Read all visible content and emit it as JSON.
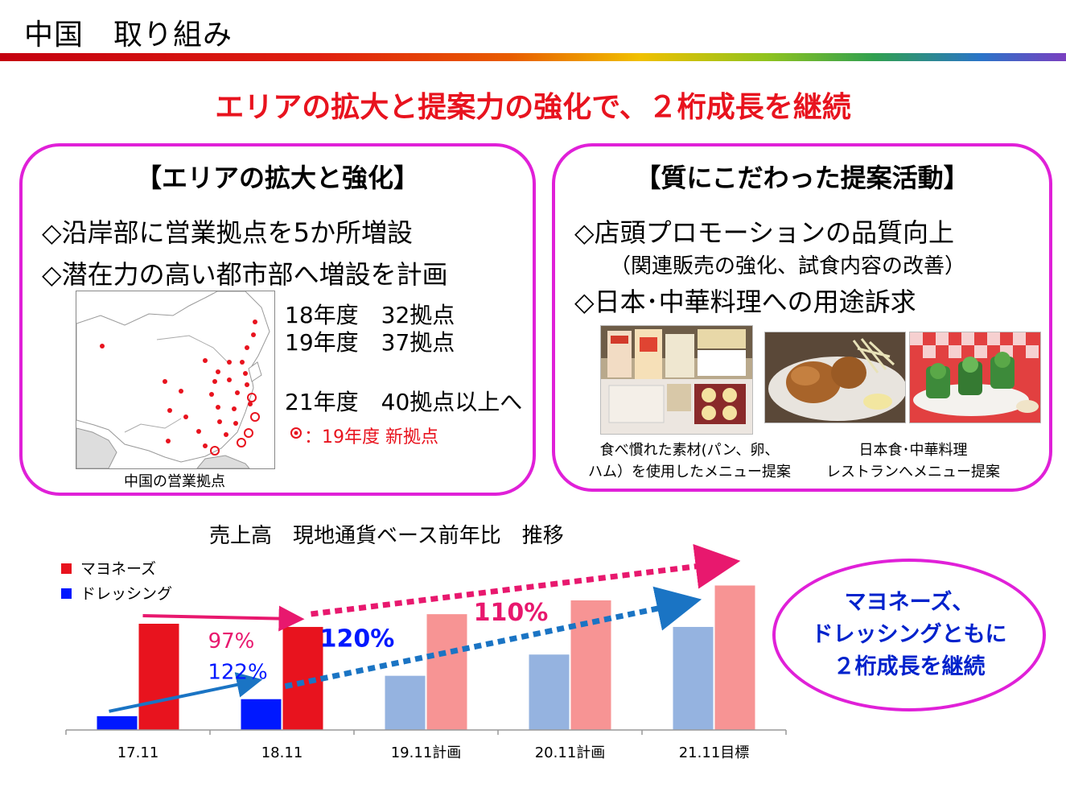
{
  "slide": {
    "title": "中国　取り組み",
    "headline": "エリアの拡大と提案力の強化で、２桁成長を継続"
  },
  "left_panel": {
    "title": "【エリアの拡大と強化】",
    "bullets": [
      "◇沿岸部に営業拠点を5か所増設",
      "◇潜在力の高い都市部へ増設を計画"
    ],
    "stats": [
      "18年度　32拠点",
      "19年度　37拠点",
      "21年度　40拠点以上へ"
    ],
    "new_base_note": "：19年度 新拠点",
    "map_caption": "中国の営業拠点"
  },
  "right_panel": {
    "title": "【質にこだわった提案活動】",
    "bullet1": "◇店頭プロモーションの品質向上",
    "bullet1_sub": "（関連販売の強化、試食内容の改善）",
    "bullet2": "◇日本･中華料理への用途訴求",
    "caption1_line1": "食べ慣れた素材(パン、卵、",
    "caption1_line2": "ハム）を使用したメニュー提案",
    "caption2_line1": "日本食･中華料理",
    "caption2_line2": "レストランへメニュー提案"
  },
  "callout": {
    "line1": "マヨネーズ、",
    "line2": "ドレッシングともに",
    "line3": "２桁成長を継続"
  },
  "colors": {
    "mayo_actual": "#e8131e",
    "mayo_plan": "#f79494",
    "dressing_actual": "#0018ff",
    "dressing_plan": "#95b3e0",
    "arrow_pink": "#e8186e",
    "arrow_blue": "#1a74c4",
    "panel_border": "#e020d8"
  },
  "chart_data": {
    "type": "bar",
    "title": "売上高　現地通貨ベース前年比　推移",
    "categories": [
      "17.11",
      "18.11",
      "19.11計画",
      "20.11計画",
      "21.11目標"
    ],
    "series": [
      {
        "name": "マヨネーズ",
        "values": [
          100,
          97,
          109,
          122,
          136
        ]
      },
      {
        "name": "ドレッシング",
        "values": [
          13,
          29,
          51,
          71,
          97
        ]
      }
    ],
    "planned_from_index": 2,
    "annotations": [
      {
        "text": "97%",
        "series": "マヨネーズ"
      },
      {
        "text": "122%",
        "series": "ドレッシング"
      },
      {
        "text": "110%",
        "series": "マヨネーズ"
      },
      {
        "text": "120%",
        "series": "ドレッシング"
      }
    ],
    "ylim": [
      0,
      140
    ],
    "legend": "top-left",
    "grid": false
  }
}
